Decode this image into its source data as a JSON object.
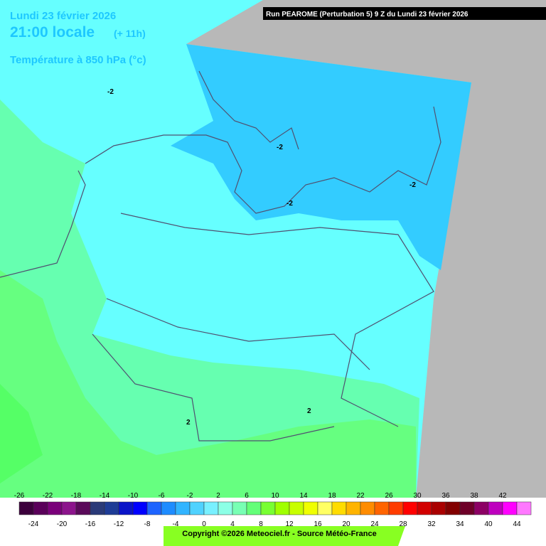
{
  "header": {
    "date": "Lundi 23 février 2026",
    "time": "21:00 locale",
    "lead": "(+ 11h)",
    "field": "Température à 850 hPa (°c)",
    "run": "Run PEAROME (Perturbation 5) 9 Z du Lundi 23 février 2026"
  },
  "contours": {
    "labels": [
      "-2",
      "-2",
      "-2",
      "-2",
      "2",
      "2"
    ]
  },
  "legend": {
    "labels": [
      -26,
      -24,
      -22,
      -20,
      -18,
      -16,
      -14,
      -12,
      -10,
      -8,
      -6,
      -4,
      -2,
      0,
      2,
      4,
      6,
      8,
      10,
      12,
      14,
      16,
      18,
      20,
      22,
      24,
      26,
      28,
      30,
      32,
      36,
      34,
      38,
      40,
      42,
      44
    ],
    "colors": [
      "#3c003c",
      "#5a005a",
      "#7a007a",
      "#8c148c",
      "#5a0a5a",
      "#2a3a78",
      "#1e3c96",
      "#0a14c8",
      "#0000ff",
      "#1e64ff",
      "#1e8cff",
      "#32b4ff",
      "#50d2ff",
      "#78f0ff",
      "#8cffe6",
      "#78ffb4",
      "#64ff78",
      "#78ff32",
      "#a0ff00",
      "#c8ff00",
      "#f0ff00",
      "#ffff64",
      "#ffdc00",
      "#ffb400",
      "#ff8c00",
      "#ff6400",
      "#ff3c00",
      "#ff0000",
      "#d20000",
      "#aa0000",
      "#820000",
      "#6e0028",
      "#8c0064",
      "#be00be",
      "#ff00ff",
      "#ff78ff"
    ]
  },
  "footer": {
    "copyright": "Copyright ©2026 Meteociel.fr - Source Météo-France"
  }
}
